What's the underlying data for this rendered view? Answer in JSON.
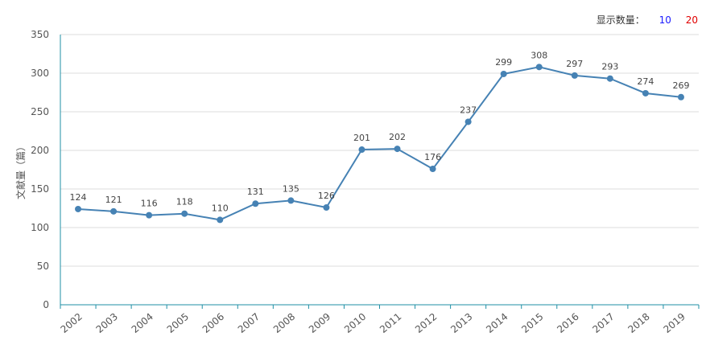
{
  "display_count": {
    "label": "显示数量：",
    "option_10": "10",
    "option_20": "20",
    "option_10_color": "#1a1aff",
    "option_20_color": "#e00000"
  },
  "colors": {
    "series": "#4682b4",
    "axis": "#1f8fa6",
    "grid": "#dddddd",
    "text": "#555555"
  },
  "chart_data": {
    "type": "line",
    "title": "",
    "xlabel": "",
    "ylabel": "文献量（篇）",
    "ylim": [
      0,
      350
    ],
    "yticks": [
      0,
      50,
      100,
      150,
      200,
      250,
      300,
      350
    ],
    "grid": true,
    "categories": [
      "2002",
      "2003",
      "2004",
      "2005",
      "2006",
      "2007",
      "2008",
      "2009",
      "2010",
      "2011",
      "2012",
      "2013",
      "2014",
      "2015",
      "2016",
      "2017",
      "2018",
      "2019"
    ],
    "series": [
      {
        "values": [
          124,
          121,
          116,
          118,
          110,
          131,
          135,
          126,
          201,
          202,
          176,
          237,
          299,
          308,
          297,
          293,
          274,
          269
        ]
      }
    ]
  }
}
